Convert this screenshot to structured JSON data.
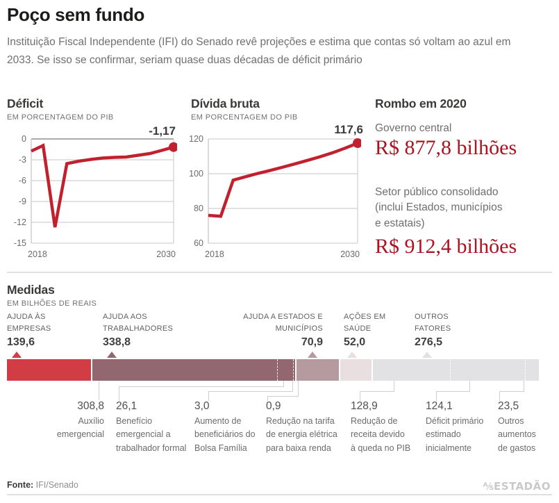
{
  "header": {
    "title": "Poço sem fundo",
    "subtitle": "Instituição Fiscal Independente (IFI) do Senado revê projeções e estima que contas só voltam ao azul em\n2033. Se isso se confirmar, seriam quase duas décadas de déficit primário"
  },
  "chart_data": [
    {
      "type": "line",
      "title": "Déficit",
      "subtitle": "EM PORCENTAGEM DO PIB",
      "x": [
        2018,
        2019,
        2020,
        2021,
        2022,
        2023,
        2024,
        2025,
        2026,
        2027,
        2028,
        2029,
        2030
      ],
      "values": [
        -1.75,
        -0.95,
        -12.7,
        -3.55,
        -3.2,
        -2.95,
        -2.75,
        -2.65,
        -2.6,
        -2.35,
        -2.1,
        -1.65,
        -1.17
      ],
      "ylim": [
        -15,
        0
      ],
      "yticks": [
        0,
        -3,
        -6,
        -9,
        -12,
        -15
      ],
      "zero_line": 0,
      "xticks": [
        "2018",
        "2030"
      ],
      "end_label": "-1,17",
      "line_color": "#c1212f",
      "grid": true
    },
    {
      "type": "line",
      "title": "Dívida bruta",
      "subtitle": "EM PORCENTAGEM DO PIB",
      "x": [
        2018,
        2019,
        2020,
        2021,
        2022,
        2023,
        2024,
        2025,
        2026,
        2027,
        2028,
        2029,
        2030
      ],
      "values": [
        76,
        75.5,
        96.3,
        98.3,
        100.2,
        101.9,
        103.8,
        105.7,
        107.7,
        109.8,
        112.1,
        114.7,
        117.6
      ],
      "ylim": [
        60,
        120
      ],
      "yticks": [
        120,
        100,
        80,
        60
      ],
      "xticks": [
        "2018",
        "2030"
      ],
      "end_label": "117,6",
      "line_color": "#c1212f",
      "grid": true
    },
    {
      "type": "bar",
      "title": "Medidas",
      "subtitle": "EM BILHÕES DE REAIS",
      "orientation": "horizontal-stacked",
      "total": 877.8,
      "segments": [
        {
          "name": "Ajuda às empresas",
          "value": 139.6,
          "color": "#d23c45"
        },
        {
          "name": "Ajuda aos trabalhadores",
          "value": 338.8,
          "color": "#92676f",
          "subs": [
            308.8,
            26.1,
            3.0,
            0.9
          ]
        },
        {
          "name": "Ajuda a estados e municípios",
          "value": 70.9,
          "color": "#b59a9f"
        },
        {
          "name": "Ações em saúde",
          "value": 52.0,
          "color": "#e9dee0"
        },
        {
          "name": "Outros fatores",
          "value": 276.5,
          "color": "#e2e2e4",
          "subs": [
            128.9,
            124.1,
            23.5
          ]
        }
      ]
    }
  ],
  "rombo": {
    "title": "Rombo em 2020",
    "central_label": "Governo central",
    "central_value": "R$ 877,8 bilhões",
    "consolidated_label": "Setor público consolidado\n(inclui Estados, municípios\ne estatais)",
    "consolidated_value": "R$ 912,4 bilhões"
  },
  "medidas": {
    "groups": [
      {
        "label": "AJUDA ÀS\nEMPRESAS",
        "value": "139,6"
      },
      {
        "label": "AJUDA AOS\nTRABALHADORES",
        "value": "338,8"
      },
      {
        "label": "AJUDA A ESTADOS E\nMUNICÍPIOS",
        "value": "70,9"
      },
      {
        "label": "AÇÕES EM\nSAÚDE",
        "value": "52,0"
      },
      {
        "label": "OUTROS\nFATORES",
        "value": "276,5"
      }
    ],
    "callouts": [
      {
        "value": "308,8",
        "desc": "Auxílio\nemergencial"
      },
      {
        "value": "26,1",
        "desc": "Benefício\nemergencial a\ntrabalhador formal"
      },
      {
        "value": "3,0",
        "desc": "Aumento de\nbeneficiários do\nBolsa Família"
      },
      {
        "value": "0,9",
        "desc": "Redução na tarifa\nde energia elétrica\npara baixa renda"
      },
      {
        "value": "128,9",
        "desc": "Redução de\nreceita devido\nà queda no PIB"
      },
      {
        "value": "124,1",
        "desc": "Déficit primário\nestimado\ninicialmente"
      },
      {
        "value": "23,5",
        "desc": "Outros\naumentos\nde gastos"
      }
    ]
  },
  "footer": {
    "source_label": "Fonte:",
    "source_value": " IFI/Senado",
    "logo_glyph": "⅍",
    "logo_text": "ESTADÃO"
  }
}
